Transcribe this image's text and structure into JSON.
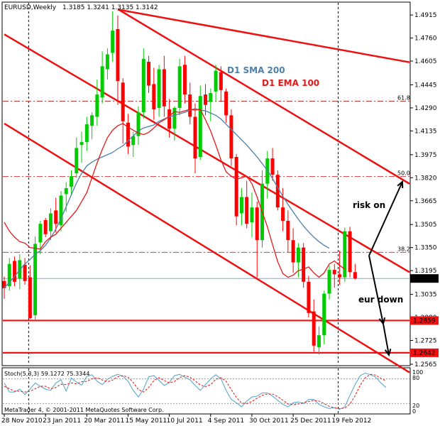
{
  "header": {
    "symbol_line": "EURUSD,Weekly",
    "ohlc_line": "1.3185 1.3241 1.3135 1.3142"
  },
  "stoch": {
    "label": "Stoch(5,3,3) 59.1272 75.3344",
    "levels": [
      "100",
      "80",
      "20",
      "0"
    ],
    "k_values": [
      70,
      48,
      48,
      55,
      42,
      55,
      70,
      62,
      55,
      52,
      70,
      78,
      50,
      82,
      72,
      65,
      86,
      90,
      74,
      66,
      79,
      86,
      91,
      86,
      74,
      52,
      36,
      55,
      85,
      88,
      76,
      64,
      71,
      88,
      91,
      84,
      78,
      64,
      52,
      66,
      80,
      90,
      80,
      52,
      30,
      22,
      12,
      26,
      36,
      38,
      46,
      46,
      38,
      28,
      18,
      12,
      22,
      24,
      20,
      30,
      30,
      18,
      12,
      8,
      10,
      6,
      12,
      40,
      66,
      88,
      94,
      90,
      84,
      70,
      59
    ],
    "d_values": [
      62,
      56,
      50,
      50,
      48,
      50,
      56,
      62,
      62,
      56,
      59,
      67,
      66,
      70,
      68,
      73,
      74,
      80,
      83,
      77,
      73,
      77,
      85,
      88,
      84,
      71,
      54,
      48,
      59,
      76,
      83,
      76,
      70,
      74,
      83,
      88,
      84,
      75,
      65,
      61,
      66,
      79,
      83,
      74,
      54,
      35,
      21,
      20,
      25,
      33,
      40,
      43,
      43,
      37,
      28,
      19,
      17,
      19,
      22,
      25,
      28,
      26,
      20,
      13,
      10,
      8,
      9,
      19,
      39,
      65,
      83,
      91,
      89,
      81,
      75
    ]
  },
  "copyright": "MetaTrader 4, © 2001-2011 MetaQuotes Software Corp.",
  "chart_data": {
    "type": "candlestick",
    "ylim": [
      1.2565,
      1.4992
    ],
    "y_ticks": [
      1.4915,
      1.476,
      1.4605,
      1.4445,
      1.429,
      1.4135,
      1.3975,
      1.382,
      1.3665,
      1.3505,
      1.335,
      1.3195,
      1.3035,
      1.288,
      1.2725,
      1.2565
    ],
    "y_tick_labels": [
      "1.4915",
      "1.4760",
      "1.4605",
      "1.4445",
      "1.4290",
      "1.4135",
      "1.3975",
      "1.3820",
      "1.3665",
      "1.3505",
      "1.3350",
      "1.3195",
      "1.3035",
      "1.2880",
      "1.2725",
      "1.2565"
    ],
    "x_labels": [
      "28 Nov 2010",
      "23 Jan 2011",
      "20 Mar 2011",
      "15 May 2011",
      "10 Jul 2011",
      "4 Sep 2011",
      "30 Oct 2011",
      "25 Dec 2011",
      "19 Feb 2012"
    ],
    "x_label_bar_index": [
      0,
      8,
      16,
      24,
      32,
      40,
      48,
      56,
      64
    ],
    "current_price": "1.3142",
    "price_tags": [
      {
        "label": "1.2859",
        "value": 1.2859
      },
      {
        "label": "1.2642",
        "value": 1.2642
      }
    ],
    "fib_levels": [
      {
        "label": "61.8",
        "value": 1.4335
      },
      {
        "label": "50.0",
        "value": 1.3828
      },
      {
        "label": "38.2",
        "value": 1.3318
      }
    ],
    "vertical_separators_bar_index": [
      5,
      65
    ],
    "trendlines": [
      {
        "name": "upper",
        "from": [
          22,
          1.4952
        ],
        "to": [
          79,
          1.4594
        ]
      },
      {
        "name": "upper-mid",
        "from": [
          0,
          1.4785
        ],
        "to": [
          79,
          1.3175
        ]
      },
      {
        "name": "mid",
        "from": [
          22,
          1.4955
        ],
        "to": [
          79,
          1.377
        ]
      },
      {
        "name": "lower",
        "from": [
          0,
          1.4185
        ],
        "to": [
          79,
          1.25
        ]
      }
    ],
    "series": [
      {
        "name": "D1 SMA 200",
        "color": "#4f7fa8"
      },
      {
        "name": "D1 EMA 100",
        "color": "#e61919"
      }
    ],
    "sma_values": [
      1.308,
      1.3115,
      1.3155,
      1.32,
      1.324,
      1.327,
      1.3305,
      1.333,
      1.3365,
      1.3415,
      1.3475,
      1.3545,
      1.3625,
      1.3705,
      1.3785,
      1.385,
      1.39,
      1.3925,
      1.3945,
      1.396,
      1.3975,
      1.399,
      1.4015,
      1.4035,
      1.407,
      1.41,
      1.4135,
      1.4155,
      1.4165,
      1.4175,
      1.42,
      1.4215,
      1.423,
      1.424,
      1.425,
      1.426,
      1.4275,
      1.4285,
      1.4275,
      1.427,
      1.4255,
      1.424,
      1.4215,
      1.418,
      1.4145,
      1.411,
      1.4075,
      1.404,
      1.4,
      1.396,
      1.3915,
      1.387,
      1.3815,
      1.3755,
      1.3695,
      1.364,
      1.359,
      1.354,
      1.3495,
      1.3455,
      1.342,
      1.339,
      1.3365,
      1.3345
    ],
    "ema_values": [
      1.352,
      1.346,
      1.342,
      1.339,
      1.338,
      1.335,
      1.3345,
      1.334,
      1.339,
      1.342,
      1.344,
      1.348,
      1.352,
      1.356,
      1.36,
      1.366,
      1.372,
      1.382,
      1.392,
      1.401,
      1.409,
      1.414,
      1.417,
      1.4185,
      1.416,
      1.414,
      1.412,
      1.411,
      1.4125,
      1.4155,
      1.419,
      1.421,
      1.4235,
      1.4265,
      1.426,
      1.427,
      1.428,
      1.4275,
      1.428,
      1.421,
      1.4135,
      1.404,
      1.394,
      1.386,
      1.383,
      1.381,
      1.382,
      1.383,
      1.378,
      1.369,
      1.359,
      1.349,
      1.337,
      1.3255,
      1.3175,
      1.315,
      1.3165,
      1.3195,
      1.3205,
      1.322,
      1.318,
      1.315,
      1.318,
      1.324,
      1.326,
      1.323,
      1.3205
    ],
    "ohlc": [
      [
        1.3125,
        1.3155,
        1.3006,
        1.3077
      ],
      [
        1.309,
        1.328,
        1.306,
        1.324
      ],
      [
        1.326,
        1.329,
        1.309,
        1.312
      ],
      [
        1.314,
        1.3305,
        1.307,
        1.3265
      ],
      [
        1.3235,
        1.328,
        1.31,
        1.3125
      ],
      [
        1.315,
        1.323,
        1.287,
        1.2875
      ],
      [
        1.2895,
        1.3425,
        1.286,
        1.3375
      ],
      [
        1.3385,
        1.353,
        1.3305,
        1.351
      ],
      [
        1.3535,
        1.355,
        1.342,
        1.344
      ],
      [
        1.346,
        1.3615,
        1.34,
        1.358
      ],
      [
        1.36,
        1.3685,
        1.345,
        1.351
      ],
      [
        1.35,
        1.373,
        1.346,
        1.37
      ],
      [
        1.371,
        1.379,
        1.359,
        1.375
      ],
      [
        1.376,
        1.387,
        1.37,
        1.383
      ],
      [
        1.385,
        1.409,
        1.382,
        1.402
      ],
      [
        1.404,
        1.413,
        1.392,
        1.406
      ],
      [
        1.406,
        1.423,
        1.4,
        1.418
      ],
      [
        1.417,
        1.426,
        1.408,
        1.424
      ],
      [
        1.423,
        1.448,
        1.417,
        1.438
      ],
      [
        1.436,
        1.467,
        1.432,
        1.457
      ],
      [
        1.455,
        1.469,
        1.448,
        1.465
      ],
      [
        1.466,
        1.494,
        1.46,
        1.481
      ],
      [
        1.482,
        1.4912,
        1.431,
        1.447
      ],
      [
        1.446,
        1.449,
        1.405,
        1.42
      ],
      [
        1.419,
        1.425,
        1.398,
        1.403
      ],
      [
        1.404,
        1.413,
        1.396,
        1.41
      ],
      [
        1.41,
        1.43,
        1.404,
        1.426
      ],
      [
        1.426,
        1.469,
        1.422,
        1.462
      ],
      [
        1.46,
        1.464,
        1.439,
        1.444
      ],
      [
        1.445,
        1.456,
        1.421,
        1.428
      ],
      [
        1.429,
        1.458,
        1.423,
        1.455
      ],
      [
        1.455,
        1.464,
        1.423,
        1.43
      ],
      [
        1.428,
        1.435,
        1.409,
        1.415
      ],
      [
        1.415,
        1.43,
        1.407,
        1.429
      ],
      [
        1.429,
        1.462,
        1.424,
        1.457
      ],
      [
        1.458,
        1.464,
        1.432,
        1.438
      ],
      [
        1.438,
        1.446,
        1.418,
        1.423
      ],
      [
        1.423,
        1.432,
        1.385,
        1.395
      ],
      [
        1.396,
        1.444,
        1.394,
        1.437
      ],
      [
        1.438,
        1.445,
        1.424,
        1.431
      ],
      [
        1.433,
        1.442,
        1.42,
        1.439
      ],
      [
        1.44,
        1.458,
        1.433,
        1.454
      ],
      [
        1.453,
        1.457,
        1.433,
        1.441
      ],
      [
        1.44,
        1.442,
        1.419,
        1.424
      ],
      [
        1.424,
        1.428,
        1.39,
        1.395
      ],
      [
        1.396,
        1.398,
        1.35,
        1.356
      ],
      [
        1.358,
        1.375,
        1.35,
        1.369
      ],
      [
        1.369,
        1.38,
        1.348,
        1.351
      ],
      [
        1.352,
        1.372,
        1.342,
        1.362
      ],
      [
        1.362,
        1.366,
        1.315,
        1.34
      ],
      [
        1.34,
        1.387,
        1.335,
        1.378
      ],
      [
        1.378,
        1.4,
        1.368,
        1.395
      ],
      [
        1.395,
        1.402,
        1.38,
        1.384
      ],
      [
        1.384,
        1.387,
        1.36,
        1.362
      ],
      [
        1.362,
        1.375,
        1.346,
        1.353
      ],
      [
        1.353,
        1.36,
        1.332,
        1.34
      ],
      [
        1.34,
        1.348,
        1.318,
        1.325
      ],
      [
        1.325,
        1.338,
        1.315,
        1.335
      ],
      [
        1.335,
        1.338,
        1.308,
        1.312
      ],
      [
        1.312,
        1.316,
        1.288,
        1.291
      ],
      [
        1.292,
        1.3,
        1.265,
        1.269
      ],
      [
        1.268,
        1.282,
        1.263,
        1.276
      ],
      [
        1.276,
        1.306,
        1.27,
        1.304
      ],
      [
        1.304,
        1.323,
        1.3,
        1.32
      ],
      [
        1.32,
        1.324,
        1.308,
        1.317
      ],
      [
        1.317,
        1.333,
        1.31,
        1.315
      ],
      [
        1.315,
        1.3485,
        1.312,
        1.346
      ],
      [
        1.346,
        1.349,
        1.315,
        1.3185
      ],
      [
        1.3185,
        1.3241,
        1.3135,
        1.3142
      ]
    ],
    "annotations": [
      "D1 SMA 200",
      "D1 EMA 100",
      "risk on",
      "eur down"
    ]
  }
}
